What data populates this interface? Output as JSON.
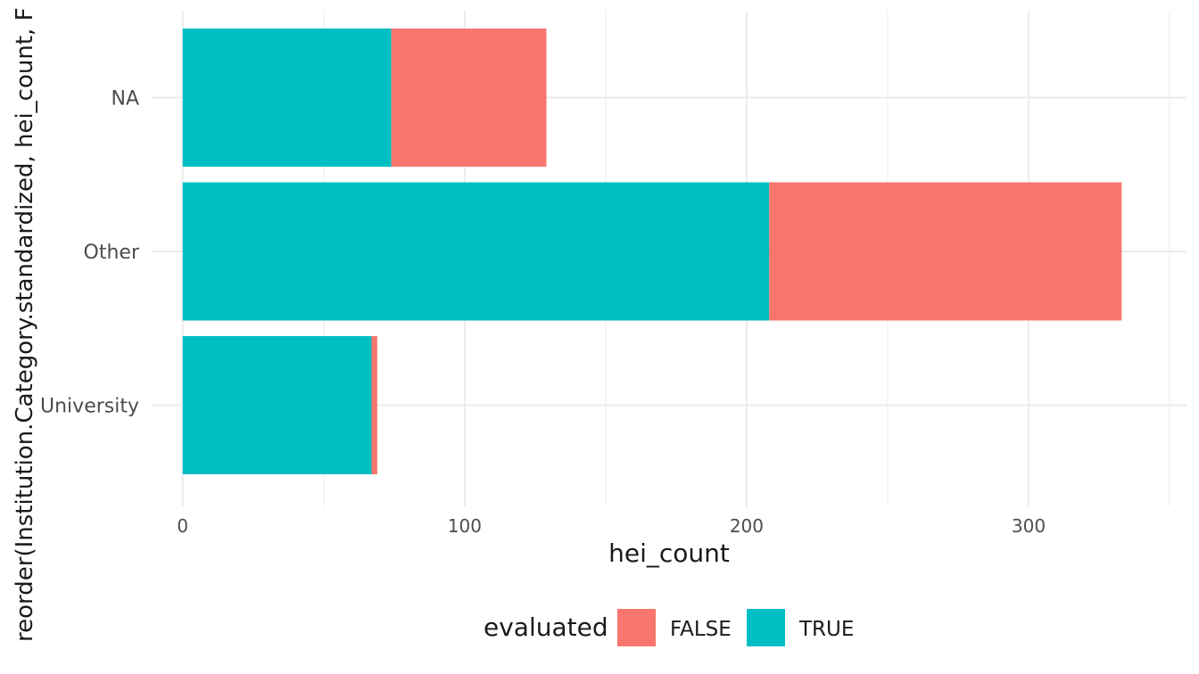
{
  "chart_data": {
    "type": "bar",
    "orientation": "horizontal",
    "stacked": true,
    "categories": [
      "University",
      "Other",
      "NA"
    ],
    "series": [
      {
        "name": "TRUE",
        "color": "#00BFC4",
        "values": [
          67,
          208,
          74
        ]
      },
      {
        "name": "FALSE",
        "color": "#F8766D",
        "values": [
          2,
          125,
          55
        ]
      }
    ],
    "xlabel": "hei_count",
    "ylabel": "reorder(Institution.Category.standardized, hei_count, F",
    "xlim": [
      -11,
      356
    ],
    "xticks": [
      0,
      100,
      200,
      300
    ],
    "grid": true,
    "legend": {
      "title": "evaluated",
      "placement": "bottom",
      "entries": [
        {
          "label": "FALSE",
          "color": "#F8766D"
        },
        {
          "label": "TRUE",
          "color": "#00BFC4"
        }
      ]
    }
  }
}
